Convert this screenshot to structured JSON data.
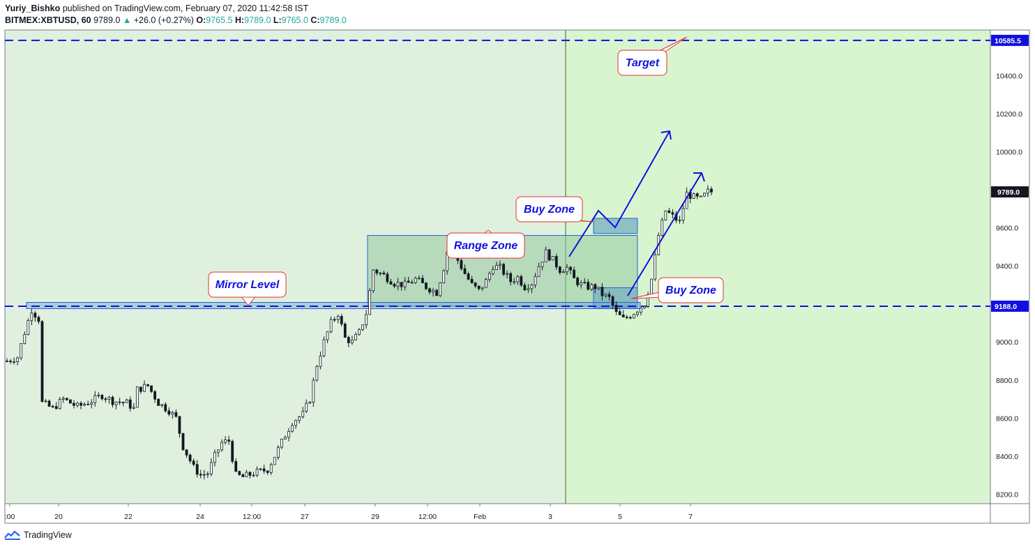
{
  "header": {
    "author": "Yuriy_Bishko",
    "published": "published on TradingView.com, February 07, 2020 11:42:58 IST",
    "symbol": "BITMEX:XBTUSD, 60",
    "last": "9789.0",
    "change": "+26.0 (+0.27%)",
    "o_label": "O:",
    "o": "9765.5",
    "h_label": "H:",
    "h": "9789.0",
    "l_label": "L:",
    "l": "9765.0",
    "c_label": "C:",
    "c": "9789.0"
  },
  "footer": {
    "brand": "TradingView"
  },
  "colors": {
    "bg_past": "#e0f0de",
    "bg_future": "#d8f5d0",
    "zone": "#96c8a0",
    "buyzone": "#7cb4c0",
    "blue": "#1010e0",
    "red": "#e03030",
    "candle": "#131722"
  },
  "chart_data": {
    "type": "candlestick",
    "symbol": "BITMEX:XBTUSD",
    "interval": "60",
    "x_ticks": [
      ":00",
      "20",
      "22",
      "24",
      "12:00",
      "27",
      "29",
      "12:00",
      "Feb",
      "3",
      "5",
      "7"
    ],
    "ylim": [
      8150,
      10640
    ],
    "y_ticks": [
      8200,
      8400,
      8600,
      8800,
      9000,
      9200,
      9400,
      9600,
      9800,
      10000,
      10200,
      10400
    ],
    "price_path": [
      [
        0,
        8900
      ],
      [
        3,
        8920
      ],
      [
        5,
        9050
      ],
      [
        7,
        9170
      ],
      [
        9,
        9120
      ],
      [
        10,
        8680
      ],
      [
        13,
        8650
      ],
      [
        16,
        8700
      ],
      [
        20,
        8660
      ],
      [
        24,
        8690
      ],
      [
        27,
        8720
      ],
      [
        30,
        8690
      ],
      [
        34,
        8680
      ],
      [
        36,
        8650
      ],
      [
        37,
        8750
      ],
      [
        40,
        8770
      ],
      [
        43,
        8680
      ],
      [
        46,
        8640
      ],
      [
        48,
        8600
      ],
      [
        50,
        8450
      ],
      [
        53,
        8340
      ],
      [
        55,
        8300
      ],
      [
        57,
        8310
      ],
      [
        59,
        8400
      ],
      [
        61,
        8470
      ],
      [
        63,
        8480
      ],
      [
        65,
        8300
      ],
      [
        67,
        8290
      ],
      [
        70,
        8310
      ],
      [
        72,
        8320
      ],
      [
        74,
        8330
      ],
      [
        76,
        8400
      ],
      [
        79,
        8510
      ],
      [
        81,
        8580
      ],
      [
        84,
        8620
      ],
      [
        86,
        8700
      ],
      [
        88,
        8880
      ],
      [
        90,
        9000
      ],
      [
        92,
        9100
      ],
      [
        94,
        9150
      ],
      [
        96,
        9020
      ],
      [
        98,
        9000
      ],
      [
        100,
        9050
      ],
      [
        102,
        9150
      ],
      [
        104,
        9380
      ],
      [
        107,
        9350
      ],
      [
        110,
        9310
      ],
      [
        113,
        9300
      ],
      [
        116,
        9330
      ],
      [
        119,
        9290
      ],
      [
        122,
        9260
      ],
      [
        124,
        9390
      ],
      [
        126,
        9560
      ],
      [
        128,
        9430
      ],
      [
        130,
        9360
      ],
      [
        132,
        9300
      ],
      [
        134,
        9270
      ],
      [
        136,
        9320
      ],
      [
        138,
        9400
      ],
      [
        140,
        9390
      ],
      [
        143,
        9320
      ],
      [
        145,
        9340
      ],
      [
        147,
        9290
      ],
      [
        149,
        9310
      ],
      [
        151,
        9400
      ],
      [
        153,
        9470
      ],
      [
        155,
        9430
      ],
      [
        157,
        9380
      ],
      [
        159,
        9390
      ],
      [
        161,
        9330
      ],
      [
        163,
        9300
      ],
      [
        165,
        9290
      ],
      [
        167,
        9290
      ],
      [
        169,
        9250
      ],
      [
        171,
        9230
      ],
      [
        173,
        9150
      ],
      [
        175,
        9120
      ],
      [
        177,
        9140
      ],
      [
        179,
        9170
      ],
      [
        181,
        9200
      ],
      [
        183,
        9330
      ],
      [
        185,
        9560
      ],
      [
        187,
        9690
      ],
      [
        189,
        9660
      ],
      [
        191,
        9630
      ],
      [
        193,
        9780
      ],
      [
        195,
        9760
      ],
      [
        197,
        9750
      ],
      [
        199,
        9790
      ],
      [
        200,
        9789
      ]
    ],
    "levels": [
      {
        "label": "10585.5",
        "value": 10585.5
      },
      {
        "label": "9188.0",
        "value": 9188.0
      }
    ],
    "current_price_label": "9789.0",
    "current_price": 9789.0,
    "annotations": [
      "Target",
      "Buy Zone",
      "Range Zone",
      "Mirror Level",
      "Buy Zone"
    ]
  }
}
